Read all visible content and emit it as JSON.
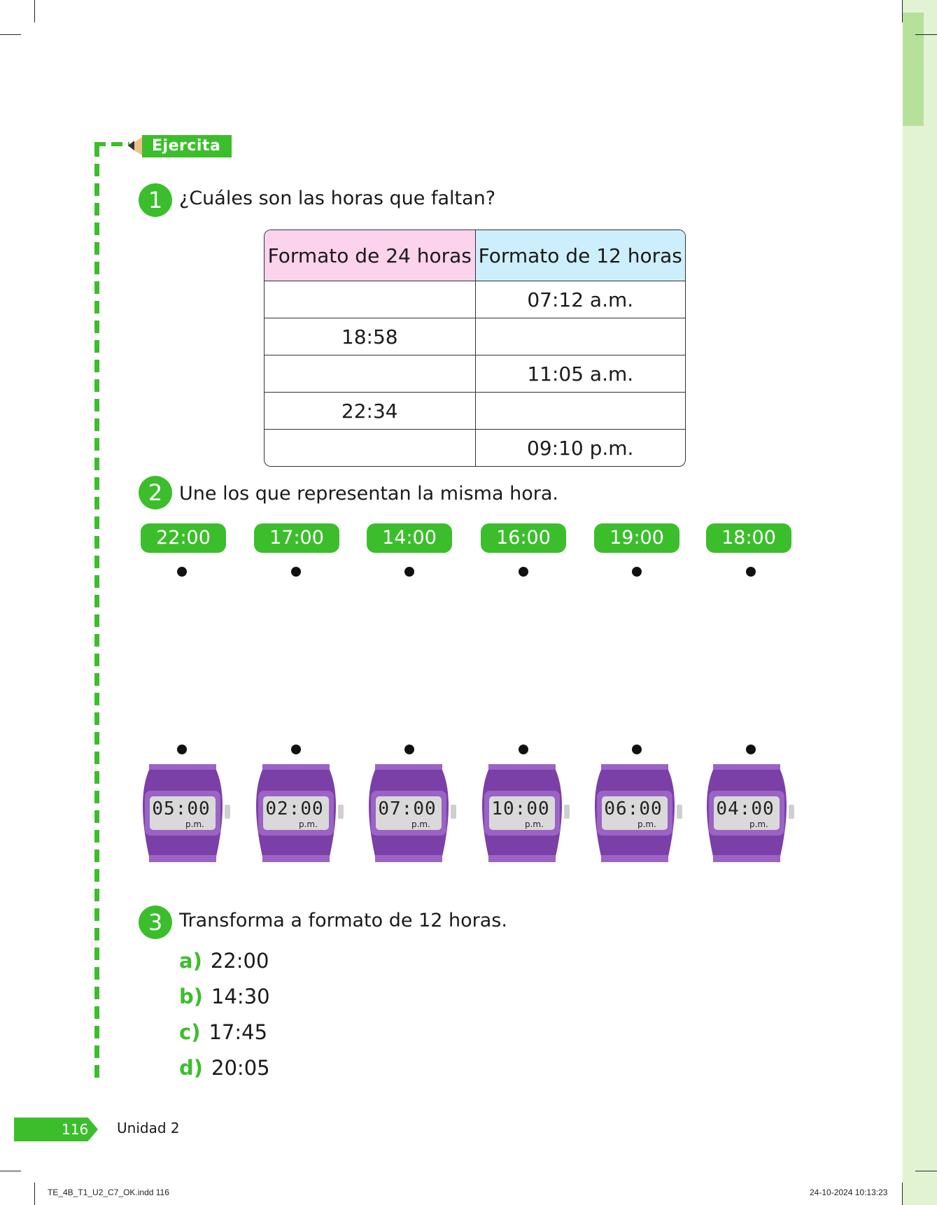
{
  "tag": {
    "label": "Ejercita"
  },
  "exercise1": {
    "number": "1",
    "prompt": "¿Cuáles son las horas que faltan?",
    "headers": [
      "Formato de 24 horas",
      "Formato de 12 horas"
    ],
    "rows": [
      [
        "",
        "07:12 a.m."
      ],
      [
        "18:58",
        ""
      ],
      [
        "",
        "11:05 a.m."
      ],
      [
        "22:34",
        ""
      ],
      [
        "",
        "09:10 p.m."
      ]
    ],
    "colors": {
      "header_24": "#fbd3ec",
      "header_12": "#cdeffc"
    }
  },
  "exercise2": {
    "number": "2",
    "prompt": "Une los que representan la misma hora.",
    "pills": [
      "22:00",
      "17:00",
      "14:00",
      "16:00",
      "19:00",
      "18:00"
    ],
    "watches": [
      {
        "time": "05:00",
        "period": "p.m."
      },
      {
        "time": "02:00",
        "period": "p.m."
      },
      {
        "time": "07:00",
        "period": "p.m."
      },
      {
        "time": "10:00",
        "period": "p.m."
      },
      {
        "time": "06:00",
        "period": "p.m."
      },
      {
        "time": "04:00",
        "period": "p.m."
      }
    ],
    "colors": {
      "pill": "#3cbe2c",
      "watch": "#7b3fa8"
    }
  },
  "exercise3": {
    "number": "3",
    "prompt": "Transforma a formato de 12 horas.",
    "items": [
      {
        "letter": "a)",
        "value": "22:00"
      },
      {
        "letter": "b)",
        "value": "14:30"
      },
      {
        "letter": "c)",
        "value": "17:45"
      },
      {
        "letter": "d)",
        "value": "20:05"
      }
    ]
  },
  "footer": {
    "page_number": "116",
    "unit": "Unidad 2",
    "slug_left": "TE_4B_T1_U2_C7_OK.indd   116",
    "slug_right": "24-10-2024   10:13:23"
  },
  "colors": {
    "accent": "#3cbe2c",
    "side_band": "#e2f3d3"
  }
}
